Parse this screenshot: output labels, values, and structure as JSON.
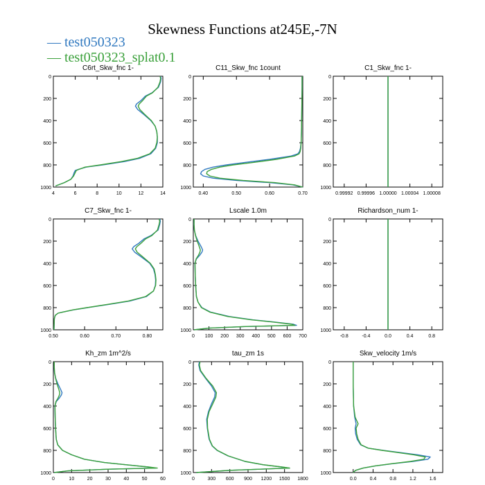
{
  "figure": {
    "title": "Skewness Functions at245E,-7N",
    "legend": [
      {
        "label": "test050323",
        "color": "#2f78bf"
      },
      {
        "label": "test050323_splat0.1",
        "color": "#3aa03a"
      }
    ]
  },
  "chart_data": [
    {
      "type": "line",
      "title": "C6rt_Skw_fnc   1-",
      "xlim": [
        4,
        14
      ],
      "xticks": [
        4,
        6,
        8,
        10,
        12,
        14
      ],
      "xtick_labels": [
        "4",
        "6",
        "8",
        "10",
        "12",
        "14"
      ],
      "ylim": [
        0,
        1000
      ],
      "yticks": [
        0,
        200,
        400,
        600,
        800,
        1000
      ],
      "ytick_labels": [
        "0",
        "200",
        "400",
        "600",
        "800",
        "1000"
      ],
      "y": [
        0,
        20,
        50,
        100,
        150,
        180,
        220,
        250,
        270,
        300,
        340,
        400,
        450,
        500,
        550,
        600,
        650,
        700,
        740,
        770,
        800,
        820,
        840,
        850,
        860,
        870,
        900,
        930,
        960,
        990
      ],
      "series": [
        {
          "name": "test050323",
          "color": "#2f78bf",
          "x": [
            13.8,
            13.85,
            13.8,
            13.6,
            13.0,
            12.4,
            12.0,
            11.6,
            11.5,
            11.7,
            12.2,
            12.9,
            13.3,
            13.45,
            13.5,
            13.5,
            13.35,
            12.9,
            11.9,
            10.5,
            8.5,
            7.0,
            6.3,
            6.0,
            5.95,
            5.9,
            5.8,
            5.6,
            5.0,
            4.2
          ]
        },
        {
          "name": "test050323_splat0.1",
          "color": "#3aa03a",
          "x": [
            13.75,
            13.8,
            13.75,
            13.55,
            13.05,
            12.5,
            12.15,
            11.85,
            11.75,
            11.9,
            12.3,
            12.95,
            13.3,
            13.45,
            13.5,
            13.45,
            13.3,
            12.8,
            11.7,
            10.2,
            8.3,
            6.9,
            6.35,
            6.1,
            6.05,
            6.0,
            5.85,
            5.6,
            5.0,
            4.2
          ]
        }
      ]
    },
    {
      "type": "line",
      "title": "C11_Skw_fnc   1count",
      "xlim": [
        0.37,
        0.7
      ],
      "xticks": [
        0.4,
        0.5,
        0.6,
        0.7
      ],
      "xtick_labels": [
        "0.40",
        "0.50",
        "0.60",
        "0.70"
      ],
      "ylim": [
        0,
        1000
      ],
      "yticks": [
        0,
        200,
        400,
        600,
        800,
        1000
      ],
      "ytick_labels": [
        "0",
        "200",
        "400",
        "600",
        "800",
        "1000"
      ],
      "y": [
        0,
        100,
        300,
        500,
        600,
        650,
        680,
        700,
        720,
        750,
        780,
        800,
        820,
        840,
        860,
        880,
        900,
        920,
        940,
        960,
        980,
        1000
      ],
      "series": [
        {
          "name": "test050323",
          "color": "#2f78bf",
          "x": [
            0.698,
            0.698,
            0.697,
            0.696,
            0.695,
            0.693,
            0.69,
            0.685,
            0.665,
            0.6,
            0.52,
            0.47,
            0.43,
            0.405,
            0.395,
            0.392,
            0.4,
            0.43,
            0.5,
            0.6,
            0.67,
            0.7
          ]
        },
        {
          "name": "test050323_splat0.1",
          "color": "#3aa03a",
          "x": [
            0.698,
            0.698,
            0.697,
            0.696,
            0.695,
            0.694,
            0.692,
            0.689,
            0.675,
            0.62,
            0.545,
            0.49,
            0.45,
            0.425,
            0.412,
            0.41,
            0.42,
            0.45,
            0.52,
            0.615,
            0.675,
            0.7
          ]
        }
      ]
    },
    {
      "type": "line",
      "title": "C1_Skw_fnc   1-",
      "xlim": [
        0.9999,
        1.0001
      ],
      "xticks": [
        0.99992,
        0.99996,
        1.0,
        1.00004,
        1.00008
      ],
      "xtick_labels": [
        "0.99992",
        "0.99996",
        "1.00000",
        "1.00004",
        "1.00008"
      ],
      "ylim": [
        0,
        1000
      ],
      "yticks": [
        0,
        200,
        400,
        600,
        800,
        1000
      ],
      "ytick_labels": [
        "0",
        "200",
        "400",
        "600",
        "800",
        "1000"
      ],
      "y": [
        0,
        1000
      ],
      "series": [
        {
          "name": "test050323",
          "color": "#2f78bf",
          "x": [
            1.0,
            1.0
          ]
        },
        {
          "name": "test050323_splat0.1",
          "color": "#3aa03a",
          "x": [
            1.0,
            1.0
          ]
        }
      ]
    },
    {
      "type": "line",
      "title": "C7_Skw_fnc   1-",
      "xlim": [
        0.5,
        0.85
      ],
      "xticks": [
        0.5,
        0.6,
        0.7,
        0.8
      ],
      "xtick_labels": [
        "0.50",
        "0.60",
        "0.70",
        "0.80"
      ],
      "ylim": [
        0,
        1000
      ],
      "yticks": [
        0,
        200,
        400,
        600,
        800,
        1000
      ],
      "ytick_labels": [
        "0",
        "200",
        "400",
        "600",
        "800",
        "1000"
      ],
      "y": [
        0,
        20,
        50,
        100,
        150,
        180,
        220,
        250,
        270,
        300,
        340,
        400,
        450,
        500,
        550,
        600,
        650,
        700,
        740,
        770,
        800,
        820,
        840,
        850,
        870,
        900,
        1000
      ],
      "series": [
        {
          "name": "test050323",
          "color": "#2f78bf",
          "x": [
            0.84,
            0.842,
            0.84,
            0.835,
            0.812,
            0.79,
            0.773,
            0.757,
            0.752,
            0.76,
            0.78,
            0.808,
            0.82,
            0.825,
            0.827,
            0.826,
            0.82,
            0.798,
            0.745,
            0.68,
            0.61,
            0.565,
            0.53,
            0.515,
            0.506,
            0.503,
            0.502
          ]
        },
        {
          "name": "test050323_splat0.1",
          "color": "#3aa03a",
          "x": [
            0.838,
            0.84,
            0.838,
            0.833,
            0.815,
            0.795,
            0.78,
            0.767,
            0.762,
            0.768,
            0.785,
            0.81,
            0.822,
            0.826,
            0.828,
            0.827,
            0.82,
            0.795,
            0.74,
            0.675,
            0.607,
            0.563,
            0.53,
            0.515,
            0.506,
            0.503,
            0.502
          ]
        }
      ]
    },
    {
      "type": "line",
      "title": "Lscale   1.0m",
      "xlim": [
        0,
        700
      ],
      "xticks": [
        0,
        100,
        200,
        300,
        400,
        500,
        600,
        700
      ],
      "xtick_labels": [
        "0",
        "100",
        "200",
        "300",
        "400",
        "500",
        "600",
        "700"
      ],
      "ylim": [
        0,
        1000
      ],
      "yticks": [
        0,
        200,
        400,
        600,
        800,
        1000
      ],
      "ytick_labels": [
        "0",
        "200",
        "400",
        "600",
        "800",
        "1000"
      ],
      "y": [
        0,
        50,
        100,
        150,
        200,
        250,
        280,
        300,
        330,
        360,
        400,
        500,
        600,
        700,
        750,
        800,
        840,
        880,
        910,
        930,
        950,
        960,
        970,
        985,
        1000
      ],
      "series": [
        {
          "name": "test050323",
          "color": "#2f78bf",
          "x": [
            5,
            4,
            6,
            15,
            30,
            50,
            60,
            55,
            40,
            20,
            10,
            12,
            15,
            20,
            30,
            55,
            110,
            230,
            380,
            520,
            640,
            660,
            350,
            100,
            5
          ]
        },
        {
          "name": "test050323_splat0.1",
          "color": "#3aa03a",
          "x": [
            5,
            5,
            7,
            14,
            25,
            38,
            45,
            42,
            32,
            18,
            11,
            12,
            15,
            20,
            30,
            52,
            105,
            220,
            370,
            510,
            630,
            650,
            340,
            100,
            5
          ]
        }
      ]
    },
    {
      "type": "line",
      "title": "Richardson_num   1-",
      "xlim": [
        -1,
        1
      ],
      "xticks": [
        -0.8,
        -0.4,
        0.0,
        0.4,
        0.8
      ],
      "xtick_labels": [
        "-0.8",
        "-0.4",
        "0.0",
        "0.4",
        "0.8"
      ],
      "ylim": [
        0,
        1000
      ],
      "yticks": [
        0,
        200,
        400,
        600,
        800,
        1000
      ],
      "ytick_labels": [
        "0",
        "200",
        "400",
        "600",
        "800",
        "1000"
      ],
      "y": [
        0,
        1000
      ],
      "series": [
        {
          "name": "test050323",
          "color": "#2f78bf",
          "x": [
            0,
            0
          ]
        },
        {
          "name": "test050323_splat0.1",
          "color": "#3aa03a",
          "x": [
            0,
            0
          ]
        }
      ]
    },
    {
      "type": "line",
      "title": "Kh_zm   1m^2/s",
      "xlim": [
        0,
        60
      ],
      "xticks": [
        0,
        10,
        20,
        30,
        40,
        50,
        60
      ],
      "xtick_labels": [
        "0",
        "10",
        "20",
        "30",
        "40",
        "50",
        "60"
      ],
      "ylim": [
        0,
        1000
      ],
      "yticks": [
        0,
        200,
        400,
        600,
        800,
        1000
      ],
      "ytick_labels": [
        "0",
        "200",
        "400",
        "600",
        "800",
        "1000"
      ],
      "y": [
        0,
        50,
        100,
        150,
        200,
        250,
        280,
        300,
        330,
        360,
        400,
        500,
        600,
        700,
        750,
        800,
        840,
        880,
        910,
        930,
        950,
        960,
        970,
        985,
        1000
      ],
      "series": [
        {
          "name": "test050323",
          "color": "#2f78bf",
          "x": [
            0.5,
            0.4,
            0.6,
            1.3,
            2.5,
            4.0,
            4.8,
            4.4,
            3.2,
            1.6,
            0.8,
            1.0,
            1.2,
            1.6,
            2.4,
            5,
            10,
            17,
            28,
            40,
            52,
            56,
            30,
            8,
            0.5
          ]
        },
        {
          "name": "test050323_splat0.1",
          "color": "#3aa03a",
          "x": [
            0.5,
            0.5,
            0.7,
            1.2,
            2.0,
            3.0,
            3.5,
            3.3,
            2.5,
            1.4,
            0.9,
            1.0,
            1.2,
            1.6,
            2.4,
            5,
            10,
            17,
            28,
            40,
            52,
            57,
            30,
            8,
            0.5
          ]
        }
      ]
    },
    {
      "type": "line",
      "title": "tau_zm   1s",
      "xlim": [
        0,
        1800
      ],
      "xticks": [
        0,
        300,
        600,
        900,
        1200,
        1500,
        1800
      ],
      "xtick_labels": [
        "0",
        "300",
        "600",
        "900",
        "1200",
        "1500",
        "1800"
      ],
      "ylim": [
        0,
        1000
      ],
      "yticks": [
        0,
        200,
        400,
        600,
        800,
        1000
      ],
      "ytick_labels": [
        "0",
        "200",
        "400",
        "600",
        "800",
        "1000"
      ],
      "y": [
        0,
        30,
        80,
        150,
        220,
        280,
        320,
        380,
        450,
        520,
        600,
        700,
        760,
        800,
        850,
        900,
        930,
        950,
        960,
        980,
        1000
      ],
      "series": [
        {
          "name": "test050323",
          "color": "#2f78bf",
          "x": [
            100,
            90,
            110,
            200,
            300,
            360,
            350,
            300,
            250,
            220,
            230,
            260,
            310,
            390,
            570,
            850,
            1150,
            1450,
            1580,
            600,
            50
          ]
        },
        {
          "name": "test050323_splat0.1",
          "color": "#3aa03a",
          "x": [
            110,
            100,
            120,
            210,
            320,
            380,
            370,
            320,
            260,
            230,
            235,
            265,
            315,
            395,
            575,
            855,
            1155,
            1455,
            1585,
            600,
            50
          ]
        }
      ]
    },
    {
      "type": "line",
      "title": "Skw_velocity   1m/s",
      "xlim": [
        -0.4,
        1.8
      ],
      "xticks": [
        0.0,
        0.4,
        0.8,
        1.2,
        1.6
      ],
      "xtick_labels": [
        "0.0",
        "0.4",
        "0.8",
        "1.2",
        "1.6"
      ],
      "ylim": [
        0,
        1000
      ],
      "yticks": [
        0,
        200,
        400,
        600,
        800,
        1000
      ],
      "ytick_labels": [
        "0",
        "200",
        "400",
        "600",
        "800",
        "1000"
      ],
      "y": [
        0,
        200,
        400,
        500,
        560,
        600,
        650,
        700,
        750,
        780,
        800,
        820,
        840,
        860,
        880,
        900,
        920,
        940,
        960,
        980,
        1000
      ],
      "series": [
        {
          "name": "test050323",
          "color": "#2f78bf",
          "x": [
            0.0,
            0.0,
            0.01,
            0.03,
            0.06,
            0.04,
            0.05,
            0.08,
            0.15,
            0.3,
            0.6,
            0.95,
            1.3,
            1.55,
            1.5,
            1.2,
            0.8,
            0.45,
            0.2,
            0.05,
            0.0
          ]
        },
        {
          "name": "test050323_splat0.1",
          "color": "#3aa03a",
          "x": [
            0.0,
            0.0,
            0.01,
            0.04,
            0.1,
            0.06,
            0.07,
            0.1,
            0.16,
            0.3,
            0.58,
            0.9,
            1.22,
            1.45,
            1.42,
            1.15,
            0.78,
            0.44,
            0.2,
            0.05,
            0.0
          ]
        }
      ]
    }
  ]
}
